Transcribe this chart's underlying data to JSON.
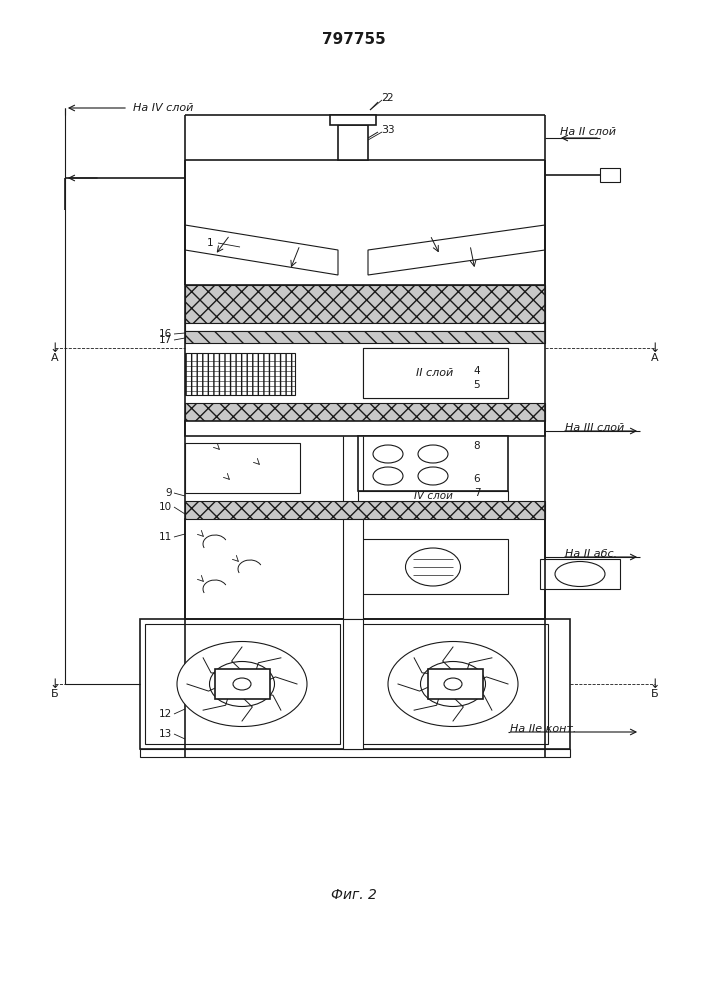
{
  "title": "797755",
  "fig_label": "Фиг. 2",
  "bg_color": "#ffffff",
  "line_color": "#1a1a1a",
  "gray_fill": "#c8c8c8",
  "hatch_color": "#555555",
  "annotations": {
    "na_iv_sloy": "На IV слой",
    "na_ii_sloy": "На II слой",
    "na_iii_sloy": "На III слой",
    "na_ii_abs": "На II абс.",
    "na_iie_kont": "На IIе конт.",
    "ii_sloy": "II слой",
    "iv_sloy": "IV слой",
    "label_A": "А",
    "label_B": "Б"
  }
}
